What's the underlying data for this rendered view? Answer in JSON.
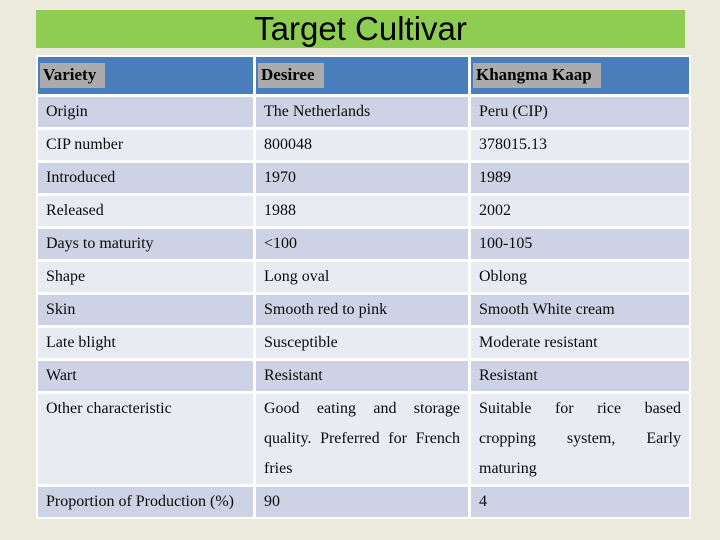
{
  "title": "Target Cultivar",
  "table": {
    "headers": [
      "Variety",
      "Desiree",
      "Khangma Kaap"
    ],
    "rows": [
      [
        "Origin",
        "The Netherlands",
        "Peru (CIP)"
      ],
      [
        "CIP number",
        "800048",
        "378015.13"
      ],
      [
        "Introduced",
        "1970",
        "1989"
      ],
      [
        "Released",
        "1988",
        "2002"
      ],
      [
        "Days to maturity",
        "<100",
        "100-105"
      ],
      [
        "Shape",
        "Long oval",
        "Oblong"
      ],
      [
        "Skin",
        "Smooth red to pink",
        "Smooth White cream"
      ],
      [
        "Late blight",
        "Susceptible",
        "Moderate resistant"
      ],
      [
        "Wart",
        "Resistant",
        "Resistant"
      ],
      [
        "Other characteristic",
        "Good eating and storage quality. Preferred for French fries",
        "Suitable for rice based cropping system, Early maturing"
      ],
      [
        "Proportion of Production (%)",
        "90",
        "4"
      ]
    ]
  },
  "colors": {
    "background": "#ECE9DD",
    "title_bar": "#8ECC52",
    "header_row": "#4A7EBA",
    "header_highlight": "#ABABAB",
    "band_dark": "#CDD3E4",
    "band_light": "#E9EBF3",
    "gridline": "#FFFFFF",
    "text": "#000000"
  }
}
